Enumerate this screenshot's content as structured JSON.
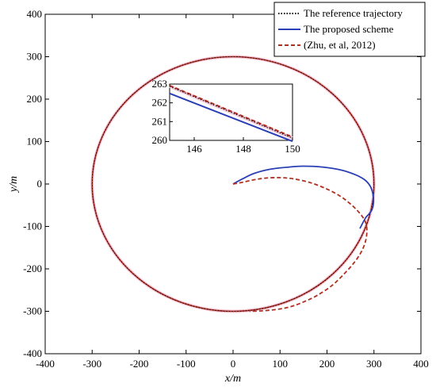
{
  "chart_data": {
    "type": "line",
    "xlabel": "x/m",
    "ylabel": "y/m",
    "xlim": [
      -400,
      400
    ],
    "ylim": [
      -400,
      400
    ],
    "xticks": [
      -400,
      -300,
      -200,
      -100,
      0,
      100,
      200,
      300,
      400
    ],
    "yticks": [
      -400,
      -300,
      -200,
      -100,
      0,
      100,
      200,
      300,
      400
    ],
    "grid": false,
    "legend_position": "top-right",
    "series": [
      {
        "name": "The reference trajectory",
        "style": "dotted",
        "color": "#000000",
        "shape": "circle",
        "center": [
          0,
          0
        ],
        "radius": 300
      },
      {
        "name": "The proposed scheme",
        "style": "solid",
        "color": "#2b3fb5",
        "points": [
          [
            0,
            0
          ],
          [
            20,
            12
          ],
          [
            45,
            25
          ],
          [
            80,
            35
          ],
          [
            120,
            40
          ],
          [
            150,
            42
          ],
          [
            190,
            40
          ],
          [
            230,
            33
          ],
          [
            260,
            22
          ],
          [
            280,
            10
          ],
          [
            292,
            -5
          ],
          [
            298,
            -25
          ],
          [
            299,
            -45
          ],
          [
            296,
            -60
          ],
          [
            290,
            -70
          ],
          [
            282,
            -80
          ],
          [
            270,
            -105
          ]
        ]
      },
      {
        "name": "(Zhu, et al, 2012)",
        "style": "dashed",
        "color": "#b03020",
        "points": [
          [
            0,
            0
          ],
          [
            20,
            4
          ],
          [
            45,
            10
          ],
          [
            70,
            14
          ],
          [
            100,
            15
          ],
          [
            130,
            12
          ],
          [
            165,
            3
          ],
          [
            200,
            -12
          ],
          [
            230,
            -30
          ],
          [
            255,
            -52
          ],
          [
            272,
            -72
          ],
          [
            282,
            -90
          ],
          [
            285,
            -110
          ],
          [
            282,
            -135
          ],
          [
            273,
            -160
          ],
          [
            258,
            -185
          ],
          [
            238,
            -210
          ],
          [
            212,
            -238
          ],
          [
            180,
            -262
          ],
          [
            150,
            -278
          ],
          [
            120,
            -290
          ],
          [
            90,
            -296
          ],
          [
            60,
            -299
          ],
          [
            35,
            -300
          ]
        ]
      }
    ],
    "inset": {
      "xlim": [
        145,
        150
      ],
      "ylim": [
        260,
        263
      ],
      "xticks": [
        146,
        148,
        150
      ],
      "yticks": [
        260,
        261,
        262,
        263
      ],
      "series": [
        {
          "name": "The reference trajectory",
          "points": [
            [
              145,
              262.88
            ],
            [
              150,
              260.12
            ]
          ]
        },
        {
          "name": "The proposed scheme",
          "points": [
            [
              145,
              262.5
            ],
            [
              150,
              259.95
            ]
          ]
        },
        {
          "name": "(Zhu, et al, 2012)",
          "points": [
            [
              145,
              262.92
            ],
            [
              150,
              260.18
            ]
          ]
        }
      ]
    }
  }
}
